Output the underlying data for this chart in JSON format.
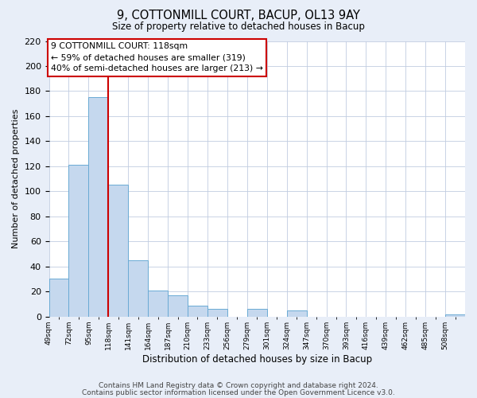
{
  "title": "9, COTTONMILL COURT, BACUP, OL13 9AY",
  "subtitle": "Size of property relative to detached houses in Bacup",
  "xlabel": "Distribution of detached houses by size in Bacup",
  "ylabel": "Number of detached properties",
  "bin_labels": [
    "49sqm",
    "72sqm",
    "95sqm",
    "118sqm",
    "141sqm",
    "164sqm",
    "187sqm",
    "210sqm",
    "233sqm",
    "256sqm",
    "279sqm",
    "301sqm",
    "324sqm",
    "347sqm",
    "370sqm",
    "393sqm",
    "416sqm",
    "439sqm",
    "462sqm",
    "485sqm",
    "508sqm"
  ],
  "bar_heights": [
    30,
    121,
    175,
    105,
    45,
    21,
    17,
    9,
    6,
    0,
    6,
    0,
    5,
    0,
    0,
    0,
    0,
    0,
    0,
    0,
    2
  ],
  "bar_color": "#c5d8ee",
  "bar_edge_color": "#6aaad4",
  "vline_x_bin": 3,
  "vline_color": "#cc0000",
  "ylim": [
    0,
    220
  ],
  "yticks": [
    0,
    20,
    40,
    60,
    80,
    100,
    120,
    140,
    160,
    180,
    200,
    220
  ],
  "annotation_line1": "9 COTTONMILL COURT: 118sqm",
  "annotation_line2": "← 59% of detached houses are smaller (319)",
  "annotation_line3": "40% of semi-detached houses are larger (213) →",
  "annotation_box_edge_color": "#cc0000",
  "footer_line1": "Contains HM Land Registry data © Crown copyright and database right 2024.",
  "footer_line2": "Contains public sector information licensed under the Open Government Licence v3.0.",
  "fig_bg_color": "#e8eef8",
  "plot_bg_color": "#ffffff",
  "grid_color": "#c0cce0"
}
